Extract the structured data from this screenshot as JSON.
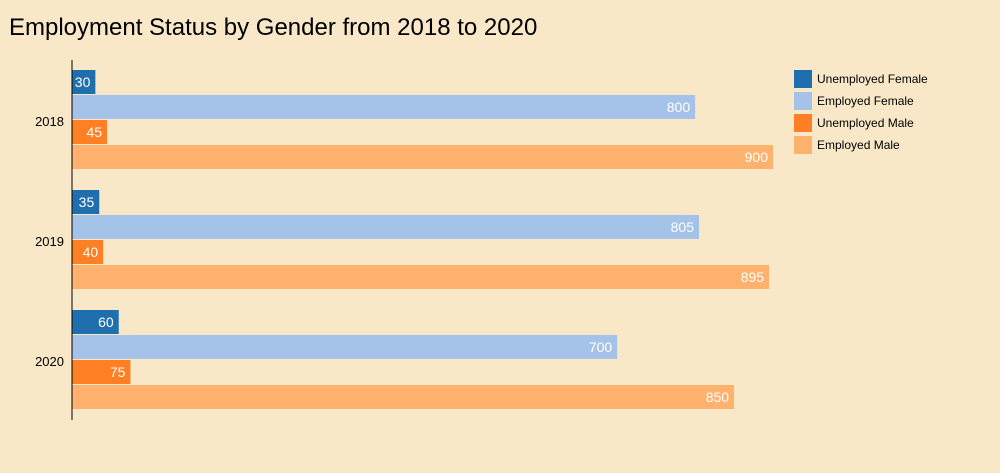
{
  "chart_data": {
    "type": "bar",
    "orientation": "horizontal",
    "title": "Employment Status by Gender from 2018 to 2020",
    "xlabel": "",
    "ylabel": "",
    "categories": [
      "2018",
      "2019",
      "2020"
    ],
    "series": [
      {
        "name": "Unemployed Female",
        "color": "#1f6fae",
        "values": [
          30,
          35,
          60
        ]
      },
      {
        "name": "Employed Female",
        "color": "#a5c3e8",
        "values": [
          800,
          805,
          700
        ]
      },
      {
        "name": "Unemployed Male",
        "color": "#ff7f24",
        "values": [
          45,
          40,
          75
        ]
      },
      {
        "name": "Employed Male",
        "color": "#ffb26d",
        "values": [
          900,
          895,
          850
        ]
      }
    ],
    "xlim": [
      0,
      900
    ],
    "grid": false,
    "legend": "top-right",
    "data_labels": true
  }
}
